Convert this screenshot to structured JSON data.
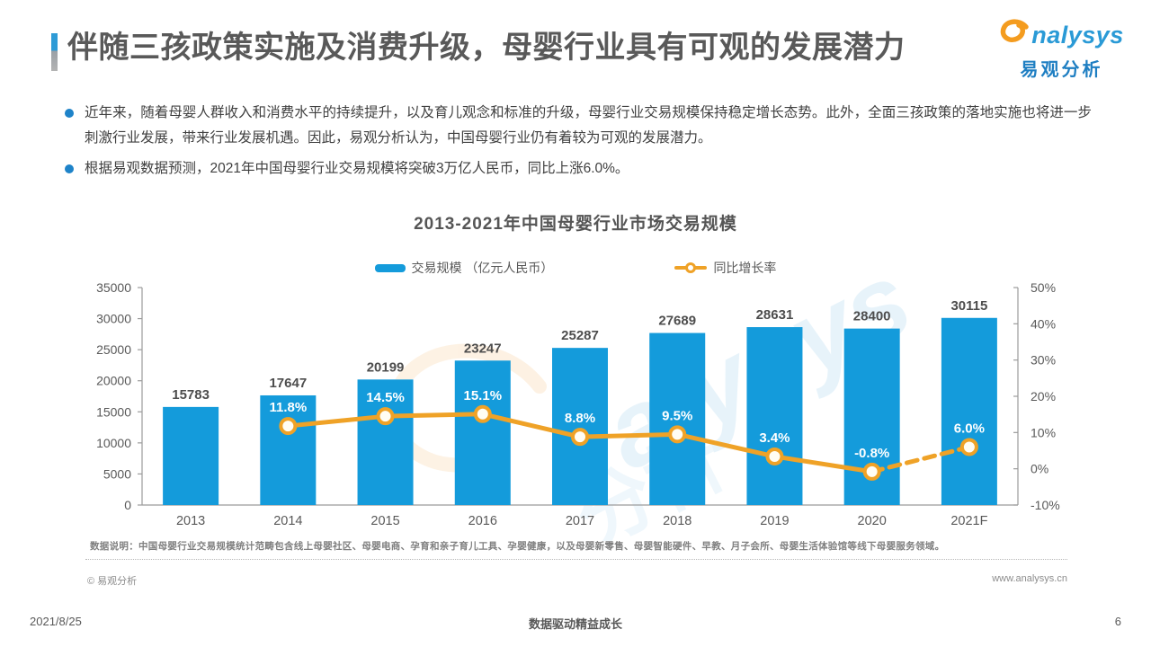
{
  "page": {
    "title": "伴随三孩政策实施及消费升级，母婴行业具有可观的发展潜力",
    "logo": {
      "brand": "nalysys",
      "cn": "易观分析"
    },
    "bullets": [
      "近年来，随着母婴人群收入和消费水平的持续提升，以及育儿观念和标准的升级，母婴行业交易规模保持稳定增长态势。此外，全面三孩政策的落地实施也将进一步刺激行业发展，带来行业发展机遇。因此，易观分析认为，中国母婴行业仍有着较为可观的发展潜力。",
      "根据易观数据预测，2021年中国母婴行业交易规模将突破3万亿人民币，同比上涨6.0%。"
    ],
    "note": "数据说明：中国母婴行业交易规模统计范畴包含线上母婴社区、母婴电商、孕育和亲子育儿工具、孕婴健康，以及母婴新零售、母婴智能硬件、早教、月子会所、母婴生活体验馆等线下母婴服务领域。",
    "footer": {
      "copyright": "© 易观分析",
      "website": "www.analysys.cn",
      "date": "2021/8/25",
      "tagline": "数据驱动精益成长",
      "page_number": "6"
    }
  },
  "chart_data": {
    "type": "bar",
    "title": "2013-2021年中国母婴行业市场交易规模",
    "categories": [
      "2013",
      "2014",
      "2015",
      "2016",
      "2017",
      "2018",
      "2019",
      "2020",
      "2021F"
    ],
    "series": [
      {
        "name": "交易规模 （亿元人民币）",
        "type": "bar",
        "color": "#149bdb",
        "values": [
          15783,
          17647,
          20199,
          23247,
          25287,
          27689,
          28631,
          28400,
          30115
        ]
      },
      {
        "name": "同比增长率",
        "type": "line",
        "color": "#efa227",
        "values": [
          null,
          11.8,
          14.5,
          15.1,
          8.8,
          9.5,
          3.4,
          -0.8,
          6.0
        ],
        "labels": [
          null,
          "11.8%",
          "14.5%",
          "15.1%",
          "8.8%",
          "9.5%",
          "3.4%",
          "-0.8%",
          "6.0%"
        ],
        "dashed_from_index": 7
      }
    ],
    "left_axis": {
      "min": 0,
      "max": 35000,
      "step": 5000
    },
    "right_axis": {
      "min": -10,
      "max": 50,
      "step": 10,
      "suffix": "%"
    },
    "legend_position": "top",
    "grid": false,
    "watermark": "analysys 易观分析"
  },
  "colors": {
    "bar": "#149bdb",
    "line": "#efa227",
    "accent_blue": "#2e9bd6",
    "brand_blue": "#2a9ad6",
    "brand_dark_blue": "#1e7ec2",
    "axis": "#9b9b9b",
    "value_label": "#4d4d4d"
  }
}
